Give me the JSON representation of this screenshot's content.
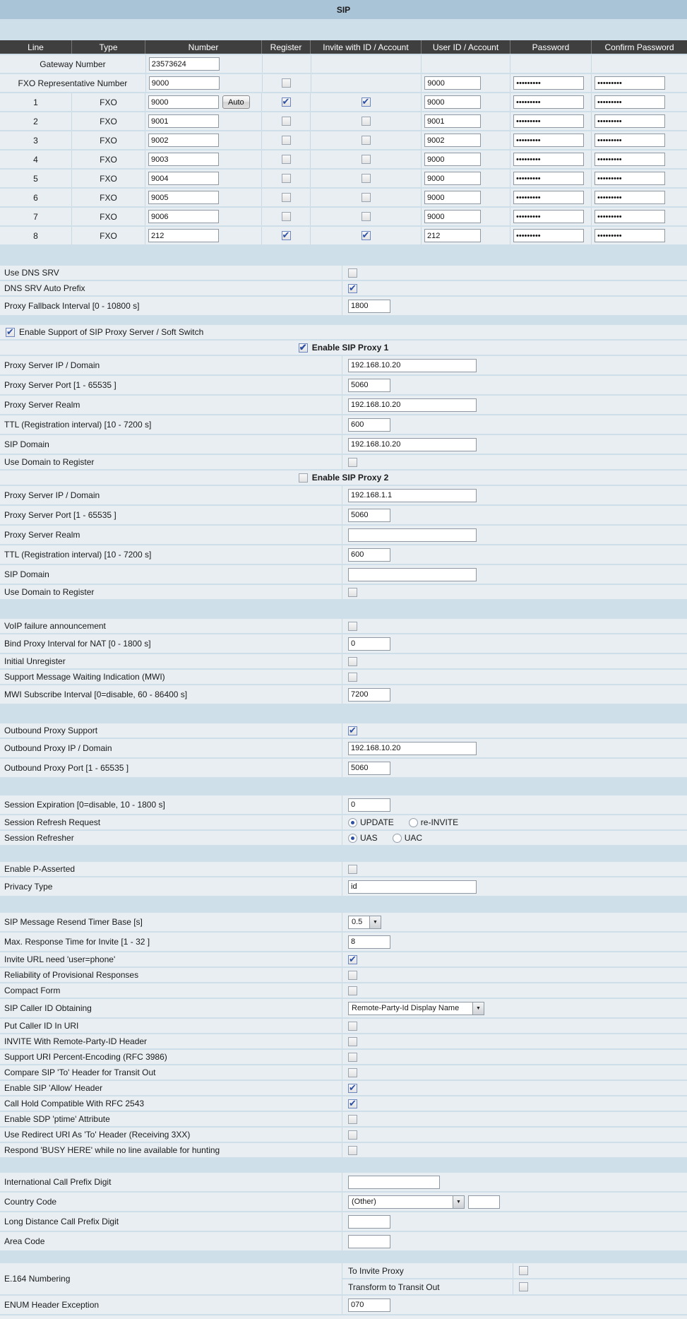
{
  "title": "SIP",
  "password_mask": "•••••••••",
  "colors": {
    "page_bg": "#cfdfe9",
    "title_bg": "#a9c3d7",
    "row_bg": "#e9eef2",
    "table_header_bg": "#3f3f3f",
    "check_color": "#2c4fa3"
  },
  "line_table": {
    "headers": [
      "Line",
      "Type",
      "Number",
      "Register",
      "Invite with ID / Account",
      "User ID / Account",
      "Password",
      "Confirm Password"
    ],
    "gateway": {
      "label": "Gateway Number",
      "number": "23573624"
    },
    "fxo_rep": {
      "label": "FXO Representative Number",
      "number": "9000",
      "register": false,
      "user_id": "9000"
    },
    "auto_button": "Auto",
    "rows": [
      {
        "line": "1",
        "type": "FXO",
        "number": "9000",
        "register": true,
        "invite": true,
        "user_id": "9000"
      },
      {
        "line": "2",
        "type": "FXO",
        "number": "9001",
        "register": false,
        "invite": false,
        "user_id": "9001"
      },
      {
        "line": "3",
        "type": "FXO",
        "number": "9002",
        "register": false,
        "invite": false,
        "user_id": "9002"
      },
      {
        "line": "4",
        "type": "FXO",
        "number": "9003",
        "register": false,
        "invite": false,
        "user_id": "9000"
      },
      {
        "line": "5",
        "type": "FXO",
        "number": "9004",
        "register": false,
        "invite": false,
        "user_id": "9000"
      },
      {
        "line": "6",
        "type": "FXO",
        "number": "9005",
        "register": false,
        "invite": false,
        "user_id": "9000"
      },
      {
        "line": "7",
        "type": "FXO",
        "number": "9006",
        "register": false,
        "invite": false,
        "user_id": "9000"
      },
      {
        "line": "8",
        "type": "FXO",
        "number": "212",
        "register": true,
        "invite": true,
        "user_id": "212"
      }
    ]
  },
  "dns": {
    "use_dns_srv": {
      "label": "Use DNS SRV",
      "checked": false
    },
    "auto_prefix": {
      "label": "DNS SRV Auto Prefix",
      "checked": true
    },
    "fallback": {
      "label": "Proxy Fallback Interval [0 - 10800 s]",
      "value": "1800"
    }
  },
  "proxy": {
    "enable_support": {
      "label": "Enable Support of SIP Proxy Server / Soft Switch",
      "checked": true
    },
    "proxy1": {
      "enable": {
        "label": "Enable SIP Proxy 1",
        "checked": true
      },
      "ip": {
        "label": "Proxy Server IP / Domain",
        "value": "192.168.10.20"
      },
      "port": {
        "label": "Proxy Server Port [1 - 65535 ]",
        "value": "5060"
      },
      "realm": {
        "label": "Proxy Server Realm",
        "value": "192.168.10.20"
      },
      "ttl": {
        "label": "TTL (Registration interval) [10 - 7200 s]",
        "value": "600"
      },
      "domain": {
        "label": "SIP Domain",
        "value": "192.168.10.20"
      },
      "use_domain": {
        "label": "Use Domain to Register",
        "checked": false
      }
    },
    "proxy2": {
      "enable": {
        "label": "Enable SIP Proxy 2",
        "checked": false
      },
      "ip": {
        "label": "Proxy Server IP / Domain",
        "value": "192.168.1.1"
      },
      "port": {
        "label": "Proxy Server Port [1 - 65535 ]",
        "value": "5060"
      },
      "realm": {
        "label": "Proxy Server Realm",
        "value": ""
      },
      "ttl": {
        "label": "TTL (Registration interval) [10 - 7200 s]",
        "value": "600"
      },
      "domain": {
        "label": "SIP Domain",
        "value": ""
      },
      "use_domain": {
        "label": "Use Domain to Register",
        "checked": false
      }
    },
    "voip_failure": {
      "label": "VoIP failure announcement",
      "checked": false
    },
    "bind_interval": {
      "label": "Bind Proxy Interval for NAT [0 - 1800 s]",
      "value": "0"
    },
    "initial_unregister": {
      "label": "Initial Unregister",
      "checked": false
    },
    "mwi_support": {
      "label": "Support Message Waiting Indication (MWI)",
      "checked": false
    },
    "mwi_interval": {
      "label": "MWI Subscribe Interval [0=disable, 60 - 86400 s]",
      "value": "7200"
    }
  },
  "outbound": {
    "support": {
      "label": "Outbound Proxy Support",
      "checked": true
    },
    "ip": {
      "label": "Outbound Proxy IP / Domain",
      "value": "192.168.10.20"
    },
    "port": {
      "label": "Outbound Proxy Port [1 - 65535 ]",
      "value": "5060"
    }
  },
  "session": {
    "expiration": {
      "label": "Session Expiration [0=disable, 10 - 1800 s]",
      "value": "0"
    },
    "refresh_request": {
      "label": "Session Refresh Request",
      "opt1": "UPDATE",
      "opt1_selected": true,
      "opt2": "re-INVITE",
      "opt2_selected": false
    },
    "refresher": {
      "label": "Session Refresher",
      "opt1": "UAS",
      "opt1_selected": true,
      "opt2": "UAC",
      "opt2_selected": false
    }
  },
  "p_asserted": {
    "enable": {
      "label": "Enable P-Asserted",
      "checked": false
    },
    "privacy": {
      "label": "Privacy Type",
      "value": "id"
    }
  },
  "sip_misc": {
    "resend_timer": {
      "label": "SIP Message Resend Timer Base [s]",
      "value": "0.5"
    },
    "max_response": {
      "label": "Max. Response Time for Invite [1 - 32 ]",
      "value": "8"
    },
    "user_phone": {
      "label": "Invite URL need 'user=phone'",
      "checked": true
    },
    "provisional": {
      "label": "Reliability of Provisional Responses",
      "checked": false
    },
    "compact": {
      "label": "Compact Form",
      "checked": false
    },
    "caller_id_obtaining": {
      "label": "SIP Caller ID Obtaining",
      "value": "Remote-Party-Id Display Name"
    },
    "caller_id_in_uri": {
      "label": "Put Caller ID In URI",
      "checked": false
    },
    "rpid_header": {
      "label": "INVITE With Remote-Party-ID Header",
      "checked": false
    },
    "percent_encoding": {
      "label": "Support URI Percent-Encoding (RFC 3986)",
      "checked": false
    },
    "compare_to": {
      "label": "Compare SIP 'To' Header for Transit Out",
      "checked": false
    },
    "allow_header": {
      "label": "Enable SIP 'Allow' Header",
      "checked": true
    },
    "call_hold": {
      "label": "Call Hold Compatible With RFC 2543",
      "checked": true
    },
    "ptime": {
      "label": "Enable SDP 'ptime' Attribute",
      "checked": false
    },
    "redirect_uri": {
      "label": "Use Redirect URI As 'To' Header (Receiving 3XX)",
      "checked": false
    },
    "busy_here": {
      "label": "Respond 'BUSY HERE' while no line available for hunting",
      "checked": false
    }
  },
  "dialing": {
    "intl_prefix": {
      "label": "International Call Prefix Digit",
      "value": ""
    },
    "country_code": {
      "label": "Country Code",
      "value": "(Other)",
      "extra": ""
    },
    "long_distance": {
      "label": "Long Distance Call Prefix Digit",
      "value": ""
    },
    "area_code": {
      "label": "Area Code",
      "value": ""
    }
  },
  "e164": {
    "label": "E.164 Numbering",
    "to_invite_proxy": {
      "label": "To Invite Proxy",
      "checked": false
    },
    "transform": {
      "label": "Transform to Transit Out",
      "checked": false
    },
    "enum_exception": {
      "label": "ENUM Header Exception",
      "value": "070"
    }
  }
}
